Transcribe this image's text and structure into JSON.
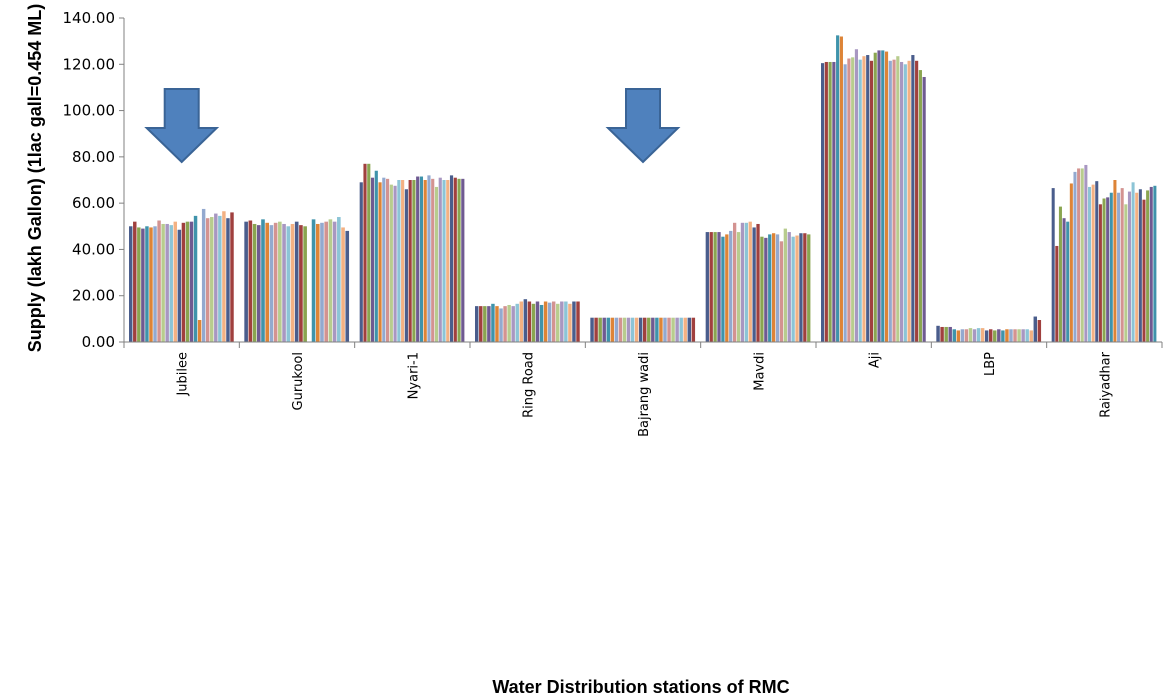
{
  "chart_data": {
    "type": "bar",
    "title": "",
    "xlabel": "Water Distribution stations of RMC",
    "ylabel": "Supply (lakh Gallon) (1lac gall=0.454 ML)",
    "ylim": [
      0,
      140
    ],
    "yticks": [
      "0.00",
      "20.00",
      "40.00",
      "60.00",
      "80.00",
      "100.00",
      "120.00",
      "140.00"
    ],
    "grid": false,
    "legend": "none",
    "categories": [
      "Jubilee",
      "Gurukool",
      "Nyari-1",
      "Ring Road",
      "Bajrang wadi",
      "Mavdi",
      "Aji",
      "LBP",
      "Raiyadhar"
    ],
    "series_colors": [
      "#4a5d8c",
      "#a0403e",
      "#8aa550",
      "#6f5a91",
      "#3f93ab",
      "#dd8437",
      "#93a9cf",
      "#d39391",
      "#b8cc8e",
      "#a897c1",
      "#8cc4d6",
      "#f3b183"
    ],
    "values": [
      [
        50,
        52,
        49.5,
        49,
        50,
        49.5,
        50,
        52.5,
        51,
        51,
        50.5,
        52,
        48.5,
        51.5,
        52,
        52,
        54.5,
        9.5,
        57.5,
        53.5,
        54,
        55.5,
        54.5,
        56.5,
        53.5,
        56
      ],
      [
        52,
        52.5,
        51,
        50.5,
        53,
        51.5,
        50.5,
        51.5,
        52,
        51,
        50,
        51,
        52,
        50.5,
        50,
        0,
        53,
        51,
        51.5,
        52,
        53,
        52,
        54,
        49.5,
        48
      ],
      [
        69,
        77,
        77,
        71,
        74,
        69,
        71,
        70.5,
        68,
        67.5,
        70,
        70,
        66,
        70,
        70,
        71.5,
        71.5,
        70,
        72,
        70.5,
        67,
        71,
        70,
        70,
        72,
        71,
        70.5,
        70.5
      ],
      [
        15.5,
        15.5,
        15.5,
        15.5,
        16.5,
        15.5,
        14.5,
        15.5,
        16,
        15.5,
        16.5,
        17.5,
        18.5,
        17.5,
        16.5,
        17.5,
        16,
        17.5,
        17,
        17.5,
        16.5,
        17.5,
        17.5,
        16.5,
        17.5,
        17.5
      ],
      [
        10.5,
        10.5,
        10.5,
        10.5,
        10.5,
        10.5,
        10.5,
        10.5,
        10.5,
        10.5,
        10.5,
        10.5,
        10.5,
        10.5,
        10.5,
        10.5,
        10.5,
        10.5,
        10.5,
        10.5,
        10.5,
        10.5,
        10.5,
        10.5,
        10.5,
        10.5
      ],
      [
        47.5,
        47.5,
        47.5,
        47.5,
        45.5,
        46.5,
        48,
        51.5,
        47.5,
        51.5,
        51.5,
        52,
        49.5,
        51,
        45.5,
        45,
        46.5,
        47,
        46.5,
        43.5,
        49,
        47.5,
        45.5,
        46,
        47,
        47,
        46.5
      ],
      [
        120.5,
        121,
        121,
        121,
        132.5,
        132,
        120,
        122.5,
        123,
        126.5,
        122,
        123.5,
        124,
        121.5,
        125,
        126,
        126,
        125.5,
        121.5,
        122,
        123.5,
        121,
        120,
        121.5,
        124,
        121.5,
        117.5,
        114.5
      ],
      [
        7,
        6.5,
        6.5,
        6.5,
        5.5,
        5,
        5.5,
        5.5,
        6,
        5.5,
        6,
        6,
        5,
        5.5,
        5,
        5.5,
        5,
        5.5,
        5.5,
        5.5,
        5.5,
        5.5,
        5.5,
        5,
        11,
        9.5
      ],
      [
        66.5,
        41.5,
        58.5,
        53.5,
        52,
        68.5,
        73.5,
        75,
        75,
        76.5,
        67,
        68,
        69.5,
        59.5,
        62,
        62.5,
        64.5,
        70,
        64.5,
        66.5,
        59.5,
        65,
        69,
        64.5,
        66,
        61.5,
        65.5,
        67,
        67.5
      ]
    ],
    "annotations": [
      {
        "type": "down-arrow",
        "category": "Jubilee",
        "color": "#4f81bd"
      },
      {
        "type": "down-arrow",
        "category": "Bajrang wadi",
        "color": "#4f81bd"
      }
    ]
  }
}
